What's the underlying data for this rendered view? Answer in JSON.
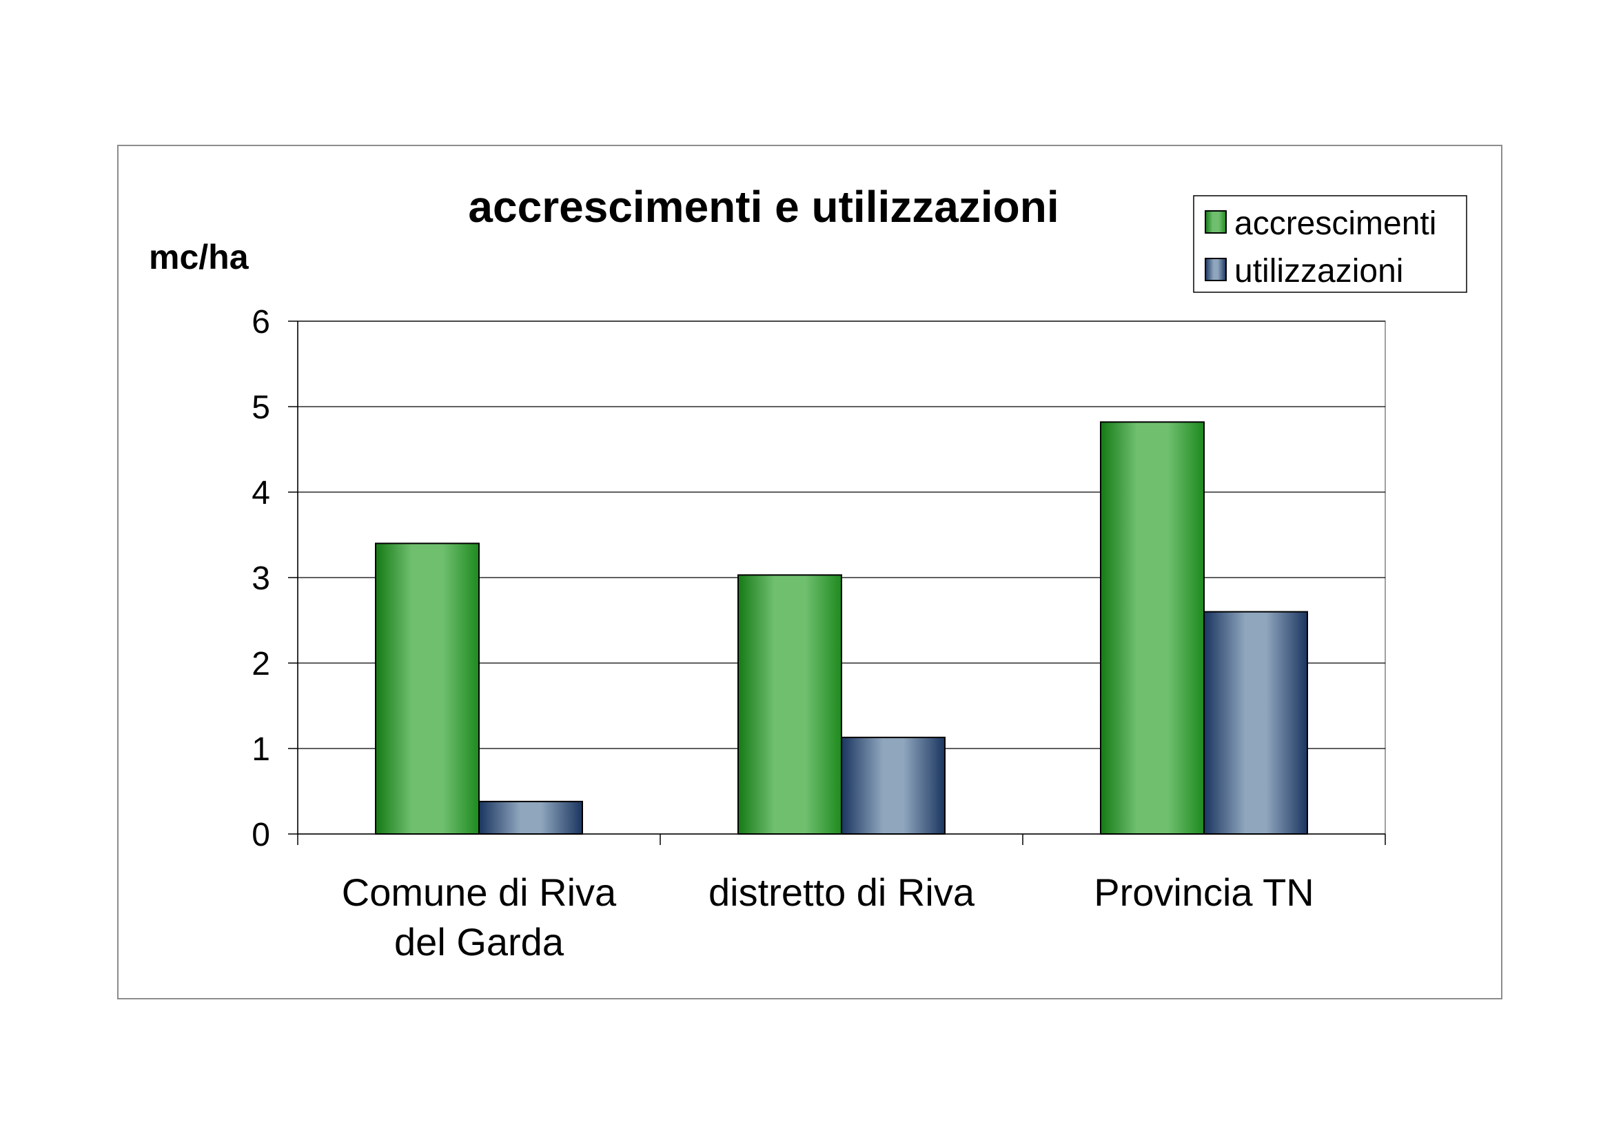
{
  "chart_data": {
    "type": "bar",
    "title": "accrescimenti e utilizzazioni",
    "ylabel": "mc/ha",
    "xlabel": "",
    "categories": [
      [
        "Comune di Riva",
        "del Garda"
      ],
      [
        "distretto di Riva"
      ],
      [
        "Provincia TN"
      ]
    ],
    "series": [
      {
        "name": "accrescimenti",
        "values": [
          3.4,
          3.03,
          4.82
        ],
        "color": "#2e8b2e"
      },
      {
        "name": "utilizzazioni",
        "values": [
          0.38,
          1.13,
          2.6
        ],
        "color": "#1f3a63"
      }
    ],
    "ylim": [
      0,
      6
    ],
    "yticks": [
      0,
      1,
      2,
      3,
      4,
      5,
      6
    ],
    "grid": true,
    "legend_position": "top-right"
  }
}
